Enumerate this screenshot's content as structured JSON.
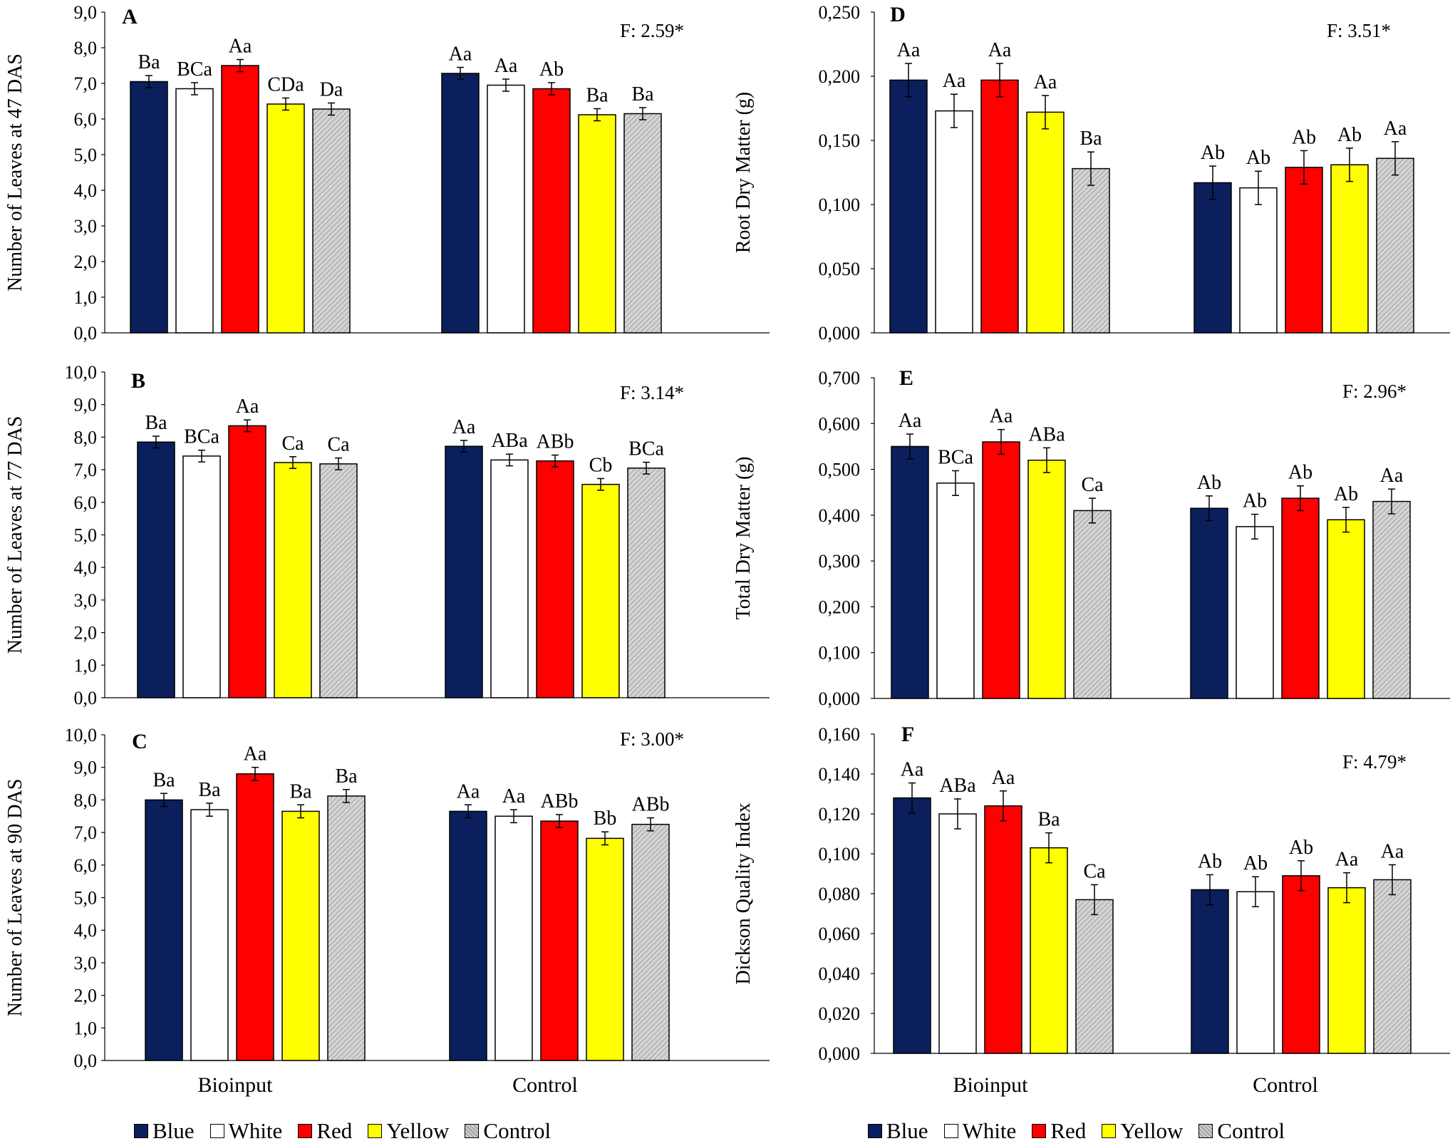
{
  "legend": [
    {
      "label": "Blue",
      "color": "#0a1f5c"
    },
    {
      "label": "White",
      "color": "#ffffff"
    },
    {
      "label": "Red",
      "color": "#ff0000"
    },
    {
      "label": "Yellow",
      "color": "#ffff00"
    },
    {
      "label": "Control",
      "color": "#cfcfcf",
      "hatched": true
    }
  ],
  "group_labels": [
    "Bioinput",
    "Control"
  ],
  "chart_data": [
    {
      "panel": "A",
      "type": "bar",
      "ylabel": "Number of Leaves at 47 DAS",
      "yticks": [
        "0,0",
        "1,0",
        "2,0",
        "3,0",
        "4,0",
        "5,0",
        "6,0",
        "7,0",
        "8,0",
        "9,0"
      ],
      "ylim": [
        0,
        9
      ],
      "stat": "F: 2.59*",
      "groups": [
        {
          "name": "Bioinput",
          "values": [
            7.05,
            6.85,
            7.5,
            6.42,
            6.28
          ],
          "errors": [
            0.17,
            0.17,
            0.17,
            0.17,
            0.17
          ],
          "letters": [
            "Ba",
            "BCa",
            "Aa",
            "CDa",
            "Da"
          ]
        },
        {
          "name": "Control",
          "values": [
            7.28,
            6.95,
            6.85,
            6.12,
            6.15
          ],
          "errors": [
            0.17,
            0.17,
            0.17,
            0.17,
            0.17
          ],
          "letters": [
            "Aa",
            "Aa",
            "Ab",
            "Ba",
            "Ba"
          ]
        }
      ]
    },
    {
      "panel": "B",
      "type": "bar",
      "ylabel": "Number of Leaves at 77 DAS",
      "yticks": [
        "0,0",
        "1,0",
        "2,0",
        "3,0",
        "4,0",
        "5,0",
        "6,0",
        "7,0",
        "8,0",
        "9,0",
        "10,0"
      ],
      "ylim": [
        0,
        10
      ],
      "stat": "F: 3.14*",
      "groups": [
        {
          "name": "Bioinput",
          "values": [
            7.85,
            7.42,
            8.35,
            7.22,
            7.18
          ],
          "errors": [
            0.18,
            0.18,
            0.18,
            0.18,
            0.18
          ],
          "letters": [
            "Ba",
            "BCa",
            "Aa",
            "Ca",
            "Ca"
          ]
        },
        {
          "name": "Control",
          "values": [
            7.72,
            7.3,
            7.27,
            6.55,
            7.05
          ],
          "errors": [
            0.18,
            0.18,
            0.18,
            0.18,
            0.18
          ],
          "letters": [
            "Aa",
            "ABa",
            "ABb",
            "Cb",
            "BCa"
          ]
        }
      ]
    },
    {
      "panel": "C",
      "type": "bar",
      "ylabel": "Number of Leaves at 90 DAS",
      "yticks": [
        "0,0",
        "1,0",
        "2,0",
        "3,0",
        "4,0",
        "5,0",
        "6,0",
        "7,0",
        "8,0",
        "9,0",
        "10,0"
      ],
      "ylim": [
        0,
        10
      ],
      "stat": "F: 3.00*",
      "groups": [
        {
          "name": "Bioinput",
          "values": [
            8.0,
            7.7,
            8.8,
            7.65,
            8.12
          ],
          "errors": [
            0.2,
            0.2,
            0.2,
            0.2,
            0.2
          ],
          "letters": [
            "Ba",
            "Ba",
            "Aa",
            "Ba",
            "Ba"
          ]
        },
        {
          "name": "Control",
          "values": [
            7.65,
            7.5,
            7.35,
            6.82,
            7.25
          ],
          "errors": [
            0.2,
            0.2,
            0.2,
            0.2,
            0.2
          ],
          "letters": [
            "Aa",
            "Aa",
            "ABb",
            "Bb",
            "ABb"
          ]
        }
      ]
    },
    {
      "panel": "D",
      "type": "bar",
      "ylabel": "Root Dry Matter (g)",
      "yticks": [
        "0,000",
        "0,050",
        "0,100",
        "0,150",
        "0,200",
        "0,250"
      ],
      "ylim": [
        0,
        0.25
      ],
      "stat": "F: 3.51*",
      "groups": [
        {
          "name": "Bioinput",
          "values": [
            0.197,
            0.173,
            0.197,
            0.172,
            0.128
          ],
          "errors": [
            0.013,
            0.013,
            0.013,
            0.013,
            0.013
          ],
          "letters": [
            "Aa",
            "Aa",
            "Aa",
            "Aa",
            "Ba"
          ]
        },
        {
          "name": "Control",
          "values": [
            0.117,
            0.113,
            0.129,
            0.131,
            0.136
          ],
          "errors": [
            0.013,
            0.013,
            0.013,
            0.013,
            0.013
          ],
          "letters": [
            "Ab",
            "Ab",
            "Ab",
            "Ab",
            "Aa"
          ]
        }
      ]
    },
    {
      "panel": "E",
      "type": "bar",
      "ylabel": "Total Dry Matter (g)",
      "yticks": [
        "0,000",
        "0,100",
        "0,200",
        "0,300",
        "0,400",
        "0,500",
        "0,600",
        "0,700"
      ],
      "ylim": [
        0,
        0.7
      ],
      "stat": "F: 2.96*",
      "groups": [
        {
          "name": "Bioinput",
          "values": [
            0.55,
            0.47,
            0.56,
            0.52,
            0.41
          ],
          "errors": [
            0.027,
            0.027,
            0.027,
            0.027,
            0.027
          ],
          "letters": [
            "Aa",
            "BCa",
            "Aa",
            "ABa",
            "Ca"
          ]
        },
        {
          "name": "Control",
          "values": [
            0.415,
            0.375,
            0.437,
            0.39,
            0.43
          ],
          "errors": [
            0.027,
            0.027,
            0.027,
            0.027,
            0.027
          ],
          "letters": [
            "Ab",
            "Ab",
            "Ab",
            "Ab",
            "Aa"
          ]
        }
      ]
    },
    {
      "panel": "F",
      "type": "bar",
      "ylabel": "Dickson Quality Index",
      "yticks": [
        "0,000",
        "0,020",
        "0,040",
        "0,060",
        "0,080",
        "0,100",
        "0,120",
        "0,140",
        "0,160"
      ],
      "ylim": [
        0,
        0.16
      ],
      "stat": "F: 4.79*",
      "groups": [
        {
          "name": "Bioinput",
          "values": [
            0.128,
            0.12,
            0.124,
            0.103,
            0.077
          ],
          "errors": [
            0.0075,
            0.0075,
            0.0075,
            0.0075,
            0.0075
          ],
          "letters": [
            "Aa",
            "ABa",
            "Aa",
            "Ba",
            "Ca"
          ]
        },
        {
          "name": "Control",
          "values": [
            0.082,
            0.081,
            0.089,
            0.083,
            0.087
          ],
          "errors": [
            0.0075,
            0.0075,
            0.0075,
            0.0075,
            0.0075
          ],
          "letters": [
            "Ab",
            "Ab",
            "Ab",
            "Aa",
            "Aa"
          ]
        }
      ]
    }
  ]
}
